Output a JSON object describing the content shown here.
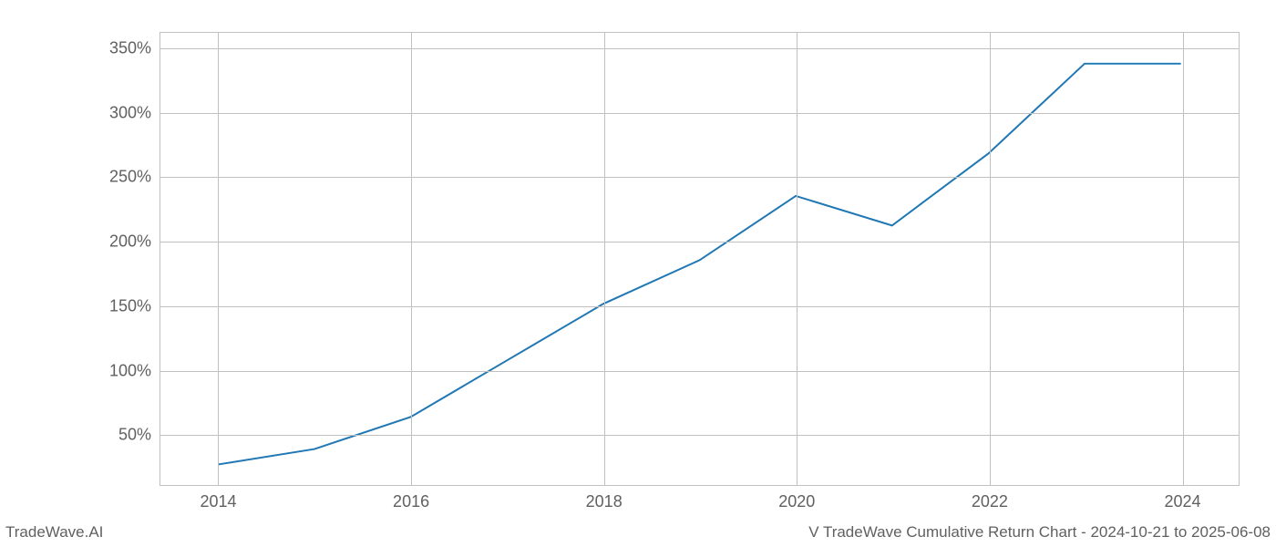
{
  "chart": {
    "type": "line",
    "background_color": "#ffffff",
    "grid_color": "#c0c0c0",
    "border_color": "#c0c0c0",
    "line_color": "#1f77b4",
    "line_width": 2,
    "tick_label_color": "#606060",
    "tick_label_fontsize": 18,
    "x": {
      "min": 2013.4,
      "max": 2024.6,
      "ticks": [
        2014,
        2016,
        2018,
        2020,
        2022,
        2024
      ],
      "tick_labels": [
        "2014",
        "2016",
        "2018",
        "2020",
        "2022",
        "2024"
      ]
    },
    "y": {
      "min": 10,
      "max": 362,
      "ticks": [
        50,
        100,
        150,
        200,
        250,
        300,
        350
      ],
      "tick_labels": [
        "50%",
        "100%",
        "150%",
        "200%",
        "250%",
        "300%",
        "350%"
      ]
    },
    "series": [
      {
        "name": "cumulative-return",
        "x": [
          2014,
          2015,
          2016,
          2017,
          2018,
          2019,
          2020,
          2021,
          2022,
          2023,
          2024
        ],
        "y": [
          26,
          38,
          63,
          107,
          151,
          185,
          235,
          212,
          268,
          338,
          338
        ]
      }
    ]
  },
  "footer": {
    "left": "TradeWave.AI",
    "right": "V TradeWave Cumulative Return Chart - 2024-10-21 to 2025-06-08"
  }
}
